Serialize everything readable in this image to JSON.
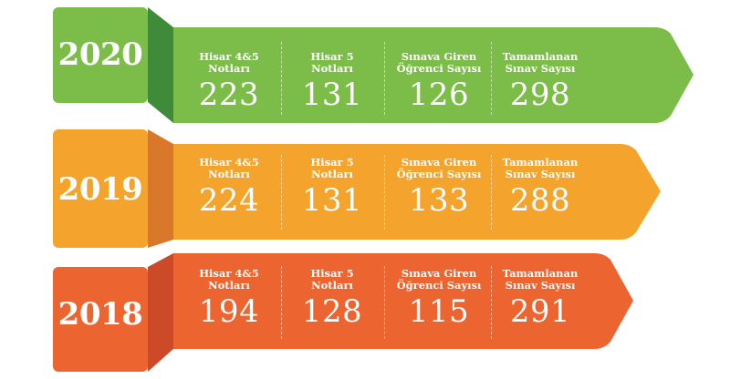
{
  "colors": {
    "green": "#7cbd4a",
    "green_dark": "#3f8b3a",
    "orange": "#f4a42d",
    "orange_dark": "#d9782a",
    "red": "#ec6430",
    "red_dark": "#cc4a28"
  },
  "labels": {
    "hisar45": "Hisar 4&5\nNotları",
    "hisar5": "Hisar 5\nNotları",
    "giren": "Sınava Giren\nÖğrenci Sayısı",
    "tamamlanan": "Tamamlanan\nSınav  Sayısı"
  },
  "rows": [
    {
      "year": "2020",
      "hisar45": "223",
      "hisar5": "131",
      "giren": "126",
      "tamamlanan": "298"
    },
    {
      "year": "2019",
      "hisar45": "224",
      "hisar5": "131",
      "giren": "133",
      "tamamlanan": "288"
    },
    {
      "year": "2018",
      "hisar45": "194",
      "hisar5": "128",
      "giren": "115",
      "tamamlanan": "291"
    }
  ]
}
